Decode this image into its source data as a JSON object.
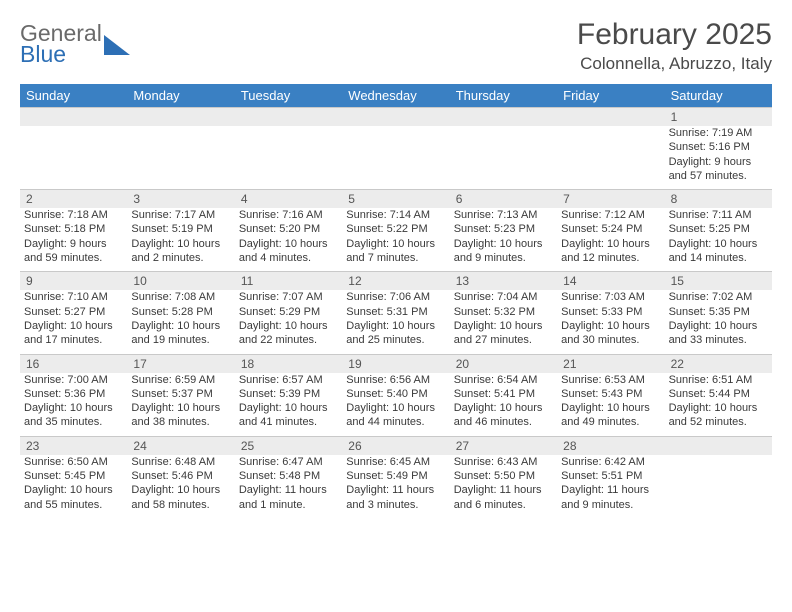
{
  "logo": {
    "part1": "General",
    "part2": "Blue"
  },
  "title": {
    "month": "February 2025",
    "location": "Colonnella, Abruzzo, Italy"
  },
  "dayNames": [
    "Sunday",
    "Monday",
    "Tuesday",
    "Wednesday",
    "Thursday",
    "Friday",
    "Saturday"
  ],
  "colors": {
    "headerBar": "#3a80c3",
    "headerText": "#ffffff",
    "dayNumBg": "#ececec",
    "border": "#c9c9c9",
    "bodyText": "#3a3a3a",
    "logoGray": "#6a6a6a",
    "logoBlue": "#2d6fb5"
  },
  "weeks": [
    {
      "nums": [
        "",
        "",
        "",
        "",
        "",
        "",
        "1"
      ],
      "cells": [
        null,
        null,
        null,
        null,
        null,
        null,
        {
          "sunrise": "Sunrise: 7:19 AM",
          "sunset": "Sunset: 5:16 PM",
          "day1": "Daylight: 9 hours",
          "day2": "and 57 minutes."
        }
      ]
    },
    {
      "nums": [
        "2",
        "3",
        "4",
        "5",
        "6",
        "7",
        "8"
      ],
      "cells": [
        {
          "sunrise": "Sunrise: 7:18 AM",
          "sunset": "Sunset: 5:18 PM",
          "day1": "Daylight: 9 hours",
          "day2": "and 59 minutes."
        },
        {
          "sunrise": "Sunrise: 7:17 AM",
          "sunset": "Sunset: 5:19 PM",
          "day1": "Daylight: 10 hours",
          "day2": "and 2 minutes."
        },
        {
          "sunrise": "Sunrise: 7:16 AM",
          "sunset": "Sunset: 5:20 PM",
          "day1": "Daylight: 10 hours",
          "day2": "and 4 minutes."
        },
        {
          "sunrise": "Sunrise: 7:14 AM",
          "sunset": "Sunset: 5:22 PM",
          "day1": "Daylight: 10 hours",
          "day2": "and 7 minutes."
        },
        {
          "sunrise": "Sunrise: 7:13 AM",
          "sunset": "Sunset: 5:23 PM",
          "day1": "Daylight: 10 hours",
          "day2": "and 9 minutes."
        },
        {
          "sunrise": "Sunrise: 7:12 AM",
          "sunset": "Sunset: 5:24 PM",
          "day1": "Daylight: 10 hours",
          "day2": "and 12 minutes."
        },
        {
          "sunrise": "Sunrise: 7:11 AM",
          "sunset": "Sunset: 5:25 PM",
          "day1": "Daylight: 10 hours",
          "day2": "and 14 minutes."
        }
      ]
    },
    {
      "nums": [
        "9",
        "10",
        "11",
        "12",
        "13",
        "14",
        "15"
      ],
      "cells": [
        {
          "sunrise": "Sunrise: 7:10 AM",
          "sunset": "Sunset: 5:27 PM",
          "day1": "Daylight: 10 hours",
          "day2": "and 17 minutes."
        },
        {
          "sunrise": "Sunrise: 7:08 AM",
          "sunset": "Sunset: 5:28 PM",
          "day1": "Daylight: 10 hours",
          "day2": "and 19 minutes."
        },
        {
          "sunrise": "Sunrise: 7:07 AM",
          "sunset": "Sunset: 5:29 PM",
          "day1": "Daylight: 10 hours",
          "day2": "and 22 minutes."
        },
        {
          "sunrise": "Sunrise: 7:06 AM",
          "sunset": "Sunset: 5:31 PM",
          "day1": "Daylight: 10 hours",
          "day2": "and 25 minutes."
        },
        {
          "sunrise": "Sunrise: 7:04 AM",
          "sunset": "Sunset: 5:32 PM",
          "day1": "Daylight: 10 hours",
          "day2": "and 27 minutes."
        },
        {
          "sunrise": "Sunrise: 7:03 AM",
          "sunset": "Sunset: 5:33 PM",
          "day1": "Daylight: 10 hours",
          "day2": "and 30 minutes."
        },
        {
          "sunrise": "Sunrise: 7:02 AM",
          "sunset": "Sunset: 5:35 PM",
          "day1": "Daylight: 10 hours",
          "day2": "and 33 minutes."
        }
      ]
    },
    {
      "nums": [
        "16",
        "17",
        "18",
        "19",
        "20",
        "21",
        "22"
      ],
      "cells": [
        {
          "sunrise": "Sunrise: 7:00 AM",
          "sunset": "Sunset: 5:36 PM",
          "day1": "Daylight: 10 hours",
          "day2": "and 35 minutes."
        },
        {
          "sunrise": "Sunrise: 6:59 AM",
          "sunset": "Sunset: 5:37 PM",
          "day1": "Daylight: 10 hours",
          "day2": "and 38 minutes."
        },
        {
          "sunrise": "Sunrise: 6:57 AM",
          "sunset": "Sunset: 5:39 PM",
          "day1": "Daylight: 10 hours",
          "day2": "and 41 minutes."
        },
        {
          "sunrise": "Sunrise: 6:56 AM",
          "sunset": "Sunset: 5:40 PM",
          "day1": "Daylight: 10 hours",
          "day2": "and 44 minutes."
        },
        {
          "sunrise": "Sunrise: 6:54 AM",
          "sunset": "Sunset: 5:41 PM",
          "day1": "Daylight: 10 hours",
          "day2": "and 46 minutes."
        },
        {
          "sunrise": "Sunrise: 6:53 AM",
          "sunset": "Sunset: 5:43 PM",
          "day1": "Daylight: 10 hours",
          "day2": "and 49 minutes."
        },
        {
          "sunrise": "Sunrise: 6:51 AM",
          "sunset": "Sunset: 5:44 PM",
          "day1": "Daylight: 10 hours",
          "day2": "and 52 minutes."
        }
      ]
    },
    {
      "nums": [
        "23",
        "24",
        "25",
        "26",
        "27",
        "28",
        ""
      ],
      "cells": [
        {
          "sunrise": "Sunrise: 6:50 AM",
          "sunset": "Sunset: 5:45 PM",
          "day1": "Daylight: 10 hours",
          "day2": "and 55 minutes."
        },
        {
          "sunrise": "Sunrise: 6:48 AM",
          "sunset": "Sunset: 5:46 PM",
          "day1": "Daylight: 10 hours",
          "day2": "and 58 minutes."
        },
        {
          "sunrise": "Sunrise: 6:47 AM",
          "sunset": "Sunset: 5:48 PM",
          "day1": "Daylight: 11 hours",
          "day2": "and 1 minute."
        },
        {
          "sunrise": "Sunrise: 6:45 AM",
          "sunset": "Sunset: 5:49 PM",
          "day1": "Daylight: 11 hours",
          "day2": "and 3 minutes."
        },
        {
          "sunrise": "Sunrise: 6:43 AM",
          "sunset": "Sunset: 5:50 PM",
          "day1": "Daylight: 11 hours",
          "day2": "and 6 minutes."
        },
        {
          "sunrise": "Sunrise: 6:42 AM",
          "sunset": "Sunset: 5:51 PM",
          "day1": "Daylight: 11 hours",
          "day2": "and 9 minutes."
        },
        null
      ]
    }
  ]
}
